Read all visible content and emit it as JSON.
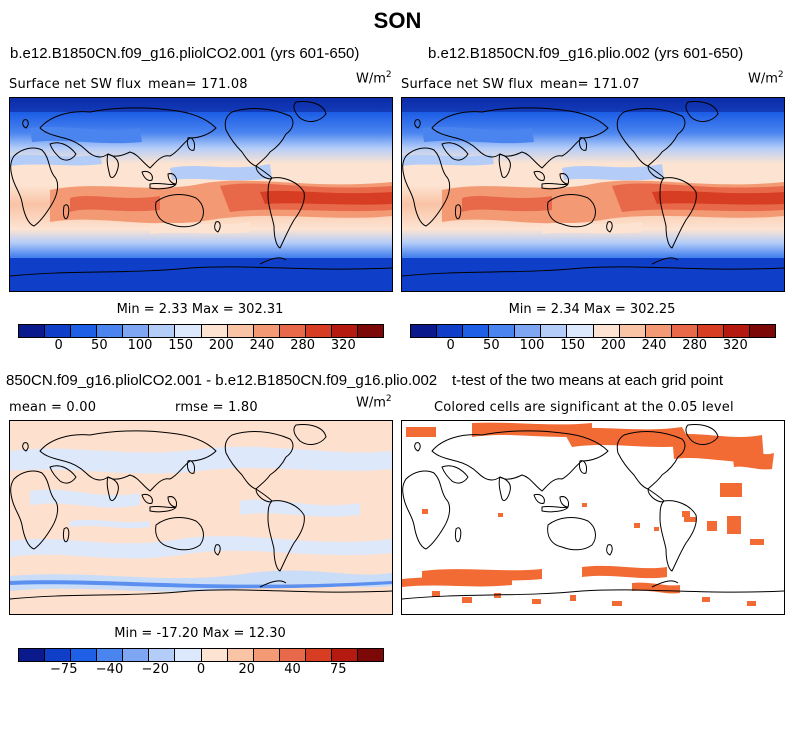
{
  "season": "SON",
  "panels": {
    "top_left": {
      "case": "b.e12.B1850CN.f09_g16.pliolCO2.001 (yrs 601-650)",
      "variable": "Surface net SW flux",
      "mean_text": "mean= 171.08",
      "units": "W/m",
      "units_exp": "2",
      "minmax": "Min =   2.33 Max = 302.31"
    },
    "top_right": {
      "case": "b.e12.B1850CN.f09_g16.plio.002 (yrs 601-650)",
      "variable": "Surface net SW flux",
      "mean_text": "mean= 171.07",
      "units": "W/m",
      "units_exp": "2",
      "minmax": "Min =   2.34 Max = 302.25"
    },
    "bottom_left": {
      "case": "850CN.f09_g16.pliolCO2.001 - b.e12.B1850CN.f09_g16.plio.002",
      "mean_text": "mean =   0.00",
      "rmse_text": "rmse =   1.80",
      "units": "W/m",
      "units_exp": "2",
      "minmax": "Min = -17.20 Max =  12.30"
    },
    "bottom_right": {
      "case": "t-test of the two means at each grid point",
      "note": "Colored cells are significant at the 0.05 level"
    }
  },
  "colorbar_abs": {
    "colors": [
      "#0a1a8c",
      "#0f3fc8",
      "#1e5fe6",
      "#4a84ef",
      "#7ea6f3",
      "#b4cdf8",
      "#dce8fb",
      "#fde4d2",
      "#f9c3a6",
      "#f39a75",
      "#e8694a",
      "#d63d22",
      "#b51a10",
      "#7c0808"
    ],
    "ticks": [
      "0",
      "50",
      "100",
      "150",
      "200",
      "240",
      "280",
      "320"
    ]
  },
  "colorbar_diff": {
    "colors": [
      "#0a1a8c",
      "#0f3fc8",
      "#1e5fe6",
      "#4a84ef",
      "#7ea6f3",
      "#b4cdf8",
      "#dce8fb",
      "#fde4d2",
      "#f9c3a6",
      "#f39a75",
      "#e8694a",
      "#d63d22",
      "#b51a10",
      "#7c0808"
    ],
    "ticks": [
      "−75",
      "−40",
      "−20",
      "0",
      "20",
      "40",
      "75"
    ]
  },
  "colors": {
    "polar_blue": "#1846d8",
    "mid_blue": "#5b8ff0",
    "pale_blue": "#c9dcf8",
    "peach": "#fde0cd",
    "salmon": "#f4a582",
    "orange_red": "#e45a2e",
    "deep_red": "#c43416",
    "sig_orange": "#f26b35",
    "coast": "#000000",
    "land": "#ffffff"
  }
}
